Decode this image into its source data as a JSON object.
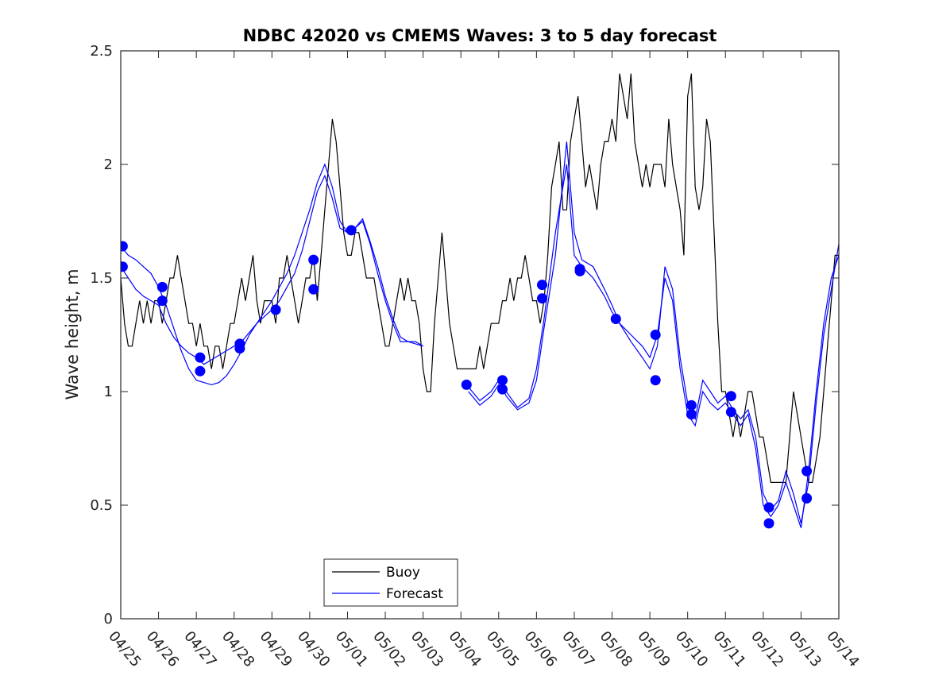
{
  "chart_data": {
    "type": "line",
    "title": "NDBC 42020 vs CMEMS Waves: 3 to 5 day forecast",
    "xlabel": "",
    "ylabel": "Wave height, m",
    "ylim": [
      0,
      2.5
    ],
    "xlim": [
      0,
      19
    ],
    "yticks": [
      0,
      0.5,
      1,
      1.5,
      2,
      2.5
    ],
    "ytick_labels": [
      "0",
      "0.5",
      "1",
      "1.5",
      "2",
      "2.5"
    ],
    "xticks": [
      0,
      1,
      2,
      3,
      4,
      5,
      6,
      7,
      8,
      9,
      10,
      11,
      12,
      13,
      14,
      15,
      16,
      17,
      18,
      19
    ],
    "xtick_labels": [
      "04/25",
      "04/26",
      "04/27",
      "04/28",
      "04/29",
      "04/30",
      "05/01",
      "05/02",
      "05/03",
      "05/04",
      "05/05",
      "05/06",
      "05/07",
      "05/08",
      "05/09",
      "05/10",
      "05/11",
      "05/12",
      "05/13",
      "05/14"
    ],
    "legend": {
      "position": "bottom-center",
      "entries": [
        "Buoy",
        "Forecast"
      ]
    },
    "colors": {
      "buoy": "#000000",
      "forecast": "#0000ff"
    },
    "series": [
      {
        "name": "Buoy",
        "x": [
          0.0,
          0.1,
          0.2,
          0.3,
          0.4,
          0.5,
          0.6,
          0.7,
          0.8,
          0.9,
          1.0,
          1.1,
          1.2,
          1.3,
          1.4,
          1.5,
          1.6,
          1.7,
          1.8,
          1.9,
          2.0,
          2.1,
          2.2,
          2.3,
          2.4,
          2.5,
          2.6,
          2.7,
          2.8,
          2.9,
          3.0,
          3.1,
          3.2,
          3.3,
          3.4,
          3.5,
          3.6,
          3.7,
          3.8,
          3.9,
          4.0,
          4.1,
          4.2,
          4.3,
          4.4,
          4.5,
          4.6,
          4.7,
          4.8,
          4.9,
          5.0,
          5.1,
          5.2,
          5.3,
          5.4,
          5.5,
          5.6,
          5.7,
          5.8,
          5.9,
          6.0,
          6.1,
          6.2,
          6.3,
          6.4,
          6.5,
          6.6,
          6.7,
          6.8,
          6.9,
          7.0,
          7.1,
          7.2,
          7.3,
          7.4,
          7.5,
          7.6,
          7.7,
          7.8,
          7.9,
          8.0,
          8.1,
          8.2,
          8.3,
          8.4,
          8.5,
          8.6,
          8.7,
          8.8,
          8.9,
          9.0,
          9.1,
          9.2,
          9.3,
          9.4,
          9.5,
          9.6,
          9.7,
          9.8,
          9.9,
          10.0,
          10.1,
          10.2,
          10.3,
          10.4,
          10.5,
          10.6,
          10.7,
          10.8,
          10.9,
          11.0,
          11.1,
          11.2,
          11.3,
          11.4,
          11.5,
          11.6,
          11.7,
          11.8,
          11.9,
          12.0,
          12.1,
          12.2,
          12.3,
          12.4,
          12.5,
          12.6,
          12.7,
          12.8,
          12.9,
          13.0,
          13.1,
          13.2,
          13.3,
          13.4,
          13.5,
          13.6,
          13.7,
          13.8,
          13.9,
          14.0,
          14.1,
          14.2,
          14.3,
          14.4,
          14.5,
          14.6,
          14.7,
          14.8,
          14.9,
          15.0,
          15.1,
          15.2,
          15.3,
          15.4,
          15.5,
          15.6,
          15.7,
          15.8,
          15.9,
          16.0,
          16.1,
          16.2,
          16.3,
          16.4,
          16.5,
          16.6,
          16.7,
          16.8,
          16.9,
          17.0,
          17.1,
          17.2,
          17.3,
          17.4,
          17.5,
          17.6,
          17.7,
          17.8,
          17.9,
          18.0,
          18.1,
          18.2,
          18.3,
          18.4,
          18.5,
          18.6,
          18.7,
          18.8,
          18.9,
          19.0
        ],
        "y": [
          1.5,
          1.3,
          1.2,
          1.2,
          1.3,
          1.4,
          1.3,
          1.4,
          1.3,
          1.4,
          1.4,
          1.3,
          1.4,
          1.5,
          1.5,
          1.6,
          1.5,
          1.4,
          1.3,
          1.3,
          1.2,
          1.3,
          1.2,
          1.2,
          1.1,
          1.2,
          1.2,
          1.1,
          1.2,
          1.3,
          1.3,
          1.4,
          1.5,
          1.4,
          1.5,
          1.6,
          1.4,
          1.3,
          1.4,
          1.4,
          1.4,
          1.3,
          1.5,
          1.5,
          1.6,
          1.5,
          1.4,
          1.3,
          1.4,
          1.5,
          1.5,
          1.6,
          1.4,
          1.6,
          1.8,
          2.0,
          2.2,
          2.1,
          1.9,
          1.7,
          1.6,
          1.6,
          1.7,
          1.7,
          1.6,
          1.5,
          1.5,
          1.5,
          1.4,
          1.3,
          1.2,
          1.2,
          1.3,
          1.4,
          1.5,
          1.4,
          1.5,
          1.4,
          1.4,
          1.3,
          1.1,
          1.0,
          1.0,
          1.3,
          1.5,
          1.7,
          1.5,
          1.3,
          1.2,
          1.1,
          1.1,
          1.1,
          1.1,
          1.1,
          1.1,
          1.2,
          1.1,
          1.2,
          1.3,
          1.3,
          1.3,
          1.4,
          1.4,
          1.5,
          1.4,
          1.5,
          1.5,
          1.6,
          1.5,
          1.4,
          1.4,
          1.3,
          1.4,
          1.6,
          1.9,
          2.0,
          2.1,
          1.8,
          1.8,
          2.1,
          2.2,
          2.3,
          2.1,
          1.9,
          2.0,
          1.9,
          1.8,
          2.0,
          2.1,
          2.1,
          2.2,
          2.1,
          2.4,
          2.3,
          2.2,
          2.4,
          2.1,
          2.0,
          1.9,
          2.0,
          1.9,
          2.0,
          2.0,
          2.0,
          1.9,
          2.2,
          2.0,
          1.9,
          1.8,
          1.6,
          2.3,
          2.4,
          1.9,
          1.8,
          1.9,
          2.2,
          2.1,
          1.7,
          1.3,
          1.0,
          1.0,
          0.9,
          0.8,
          0.9,
          0.8,
          0.9,
          1.0,
          1.0,
          0.9,
          0.8,
          0.8,
          0.7,
          0.6,
          0.6,
          0.6,
          0.6,
          0.6,
          0.8,
          1.0,
          0.9,
          0.8,
          0.7,
          0.6,
          0.6,
          0.7,
          0.8,
          1.0,
          1.2,
          1.4,
          1.6,
          1.6
        ]
      },
      {
        "name": "Forecast",
        "x": [
          0.0,
          0.2,
          0.4,
          0.6,
          0.8,
          1.0,
          1.2,
          1.4,
          1.6,
          1.8,
          2.0,
          2.2,
          2.4,
          2.6,
          2.8,
          3.0,
          3.2,
          3.4,
          3.6,
          3.8,
          4.0,
          4.2,
          4.4,
          4.6,
          4.8,
          5.0,
          5.2,
          5.4,
          5.6,
          5.8,
          6.0,
          6.2,
          6.4,
          6.6,
          6.8,
          7.0,
          7.2,
          7.4,
          7.6,
          7.8,
          8.0
        ],
        "y": [
          1.55,
          1.5,
          1.45,
          1.42,
          1.4,
          1.38,
          1.3,
          1.24,
          1.2,
          1.17,
          1.15,
          1.12,
          1.14,
          1.16,
          1.18,
          1.2,
          1.22,
          1.26,
          1.3,
          1.33,
          1.36,
          1.4,
          1.46,
          1.52,
          1.62,
          1.75,
          1.88,
          1.95,
          1.85,
          1.72,
          1.7,
          1.72,
          1.75,
          1.65,
          1.52,
          1.4,
          1.3,
          1.22,
          1.22,
          1.22,
          1.2
        ]
      },
      {
        "name": "",
        "x": [
          0.0,
          0.2,
          0.4,
          0.6,
          0.8,
          1.0,
          1.2,
          1.4,
          1.6,
          1.8,
          2.0,
          2.2,
          2.4,
          2.6,
          2.8,
          3.0,
          3.2,
          3.4,
          3.6,
          3.8,
          4.0,
          4.2,
          4.4,
          4.6,
          4.8,
          5.0,
          5.2,
          5.4,
          5.6,
          5.8,
          6.0,
          6.2,
          6.4,
          6.6,
          6.8,
          7.0,
          7.2,
          7.4,
          7.6,
          7.8,
          8.0
        ],
        "y": [
          1.64,
          1.6,
          1.58,
          1.55,
          1.52,
          1.46,
          1.38,
          1.28,
          1.18,
          1.1,
          1.05,
          1.04,
          1.03,
          1.04,
          1.07,
          1.12,
          1.18,
          1.25,
          1.3,
          1.35,
          1.4,
          1.46,
          1.52,
          1.6,
          1.7,
          1.8,
          1.92,
          2.0,
          1.9,
          1.75,
          1.7,
          1.72,
          1.76,
          1.66,
          1.55,
          1.42,
          1.32,
          1.24,
          1.22,
          1.21,
          1.2
        ]
      },
      {
        "name": "",
        "x": [
          9.2,
          9.5,
          9.8,
          10.0,
          10.2,
          10.5,
          10.8,
          11.0,
          11.2,
          11.5,
          11.8,
          12.0,
          12.2,
          12.5,
          12.8,
          13.0,
          13.2,
          13.5,
          13.8,
          14.0,
          14.2,
          14.4,
          14.6,
          14.8,
          15.0,
          15.2,
          15.4,
          15.6,
          15.8,
          16.0,
          16.2,
          16.4,
          16.6,
          16.8,
          17.0,
          17.2,
          17.4,
          17.6,
          17.8,
          18.0,
          18.2,
          18.4,
          18.6,
          18.8,
          19.0
        ],
        "y": [
          1.0,
          0.94,
          0.98,
          1.03,
          1.0,
          0.93,
          0.97,
          1.1,
          1.32,
          1.7,
          2.0,
          1.6,
          1.55,
          1.5,
          1.42,
          1.35,
          1.3,
          1.25,
          1.2,
          1.15,
          1.25,
          1.5,
          1.4,
          1.1,
          0.9,
          0.85,
          1.0,
          0.95,
          0.92,
          0.95,
          0.9,
          0.85,
          0.9,
          0.75,
          0.5,
          0.45,
          0.5,
          0.6,
          0.5,
          0.4,
          0.65,
          1.0,
          1.3,
          1.5,
          1.6
        ]
      },
      {
        "name": "",
        "x": [
          9.2,
          9.5,
          9.8,
          10.0,
          10.2,
          10.5,
          10.8,
          11.0,
          11.2,
          11.5,
          11.8,
          12.0,
          12.2,
          12.5,
          12.8,
          13.0,
          13.2,
          13.5,
          13.8,
          14.0,
          14.2,
          14.4,
          14.6,
          14.8,
          15.0,
          15.2,
          15.4,
          15.6,
          15.8,
          16.0,
          16.2,
          16.4,
          16.6,
          16.8,
          17.0,
          17.2,
          17.4,
          17.6,
          17.8,
          18.0,
          18.2,
          18.4,
          18.6,
          18.8,
          19.0
        ],
        "y": [
          1.02,
          0.96,
          1.0,
          1.05,
          0.98,
          0.92,
          0.95,
          1.05,
          1.28,
          1.6,
          2.1,
          1.7,
          1.58,
          1.55,
          1.45,
          1.38,
          1.3,
          1.22,
          1.15,
          1.1,
          1.2,
          1.55,
          1.45,
          1.15,
          0.95,
          0.88,
          1.05,
          1.0,
          0.95,
          0.98,
          0.92,
          0.88,
          0.92,
          0.8,
          0.55,
          0.48,
          0.52,
          0.65,
          0.55,
          0.42,
          0.6,
          0.95,
          1.25,
          1.45,
          1.65
        ]
      }
    ],
    "markers": {
      "x": [
        0.05,
        0.05,
        1.1,
        1.1,
        2.1,
        2.1,
        3.15,
        3.15,
        4.1,
        5.1,
        5.1,
        6.1,
        9.15,
        10.1,
        10.1,
        11.15,
        11.15,
        12.15,
        12.15,
        13.1,
        14.15,
        14.15,
        15.1,
        15.1,
        16.15,
        16.15,
        17.15,
        17.15,
        18.15,
        18.15
      ],
      "y": [
        1.64,
        1.55,
        1.46,
        1.4,
        1.15,
        1.09,
        1.21,
        1.19,
        1.36,
        1.58,
        1.45,
        1.71,
        1.03,
        1.05,
        1.01,
        1.47,
        1.41,
        1.54,
        1.53,
        1.32,
        1.25,
        1.05,
        0.94,
        0.9,
        0.98,
        0.91,
        0.49,
        0.42,
        0.65,
        0.53
      ]
    }
  }
}
